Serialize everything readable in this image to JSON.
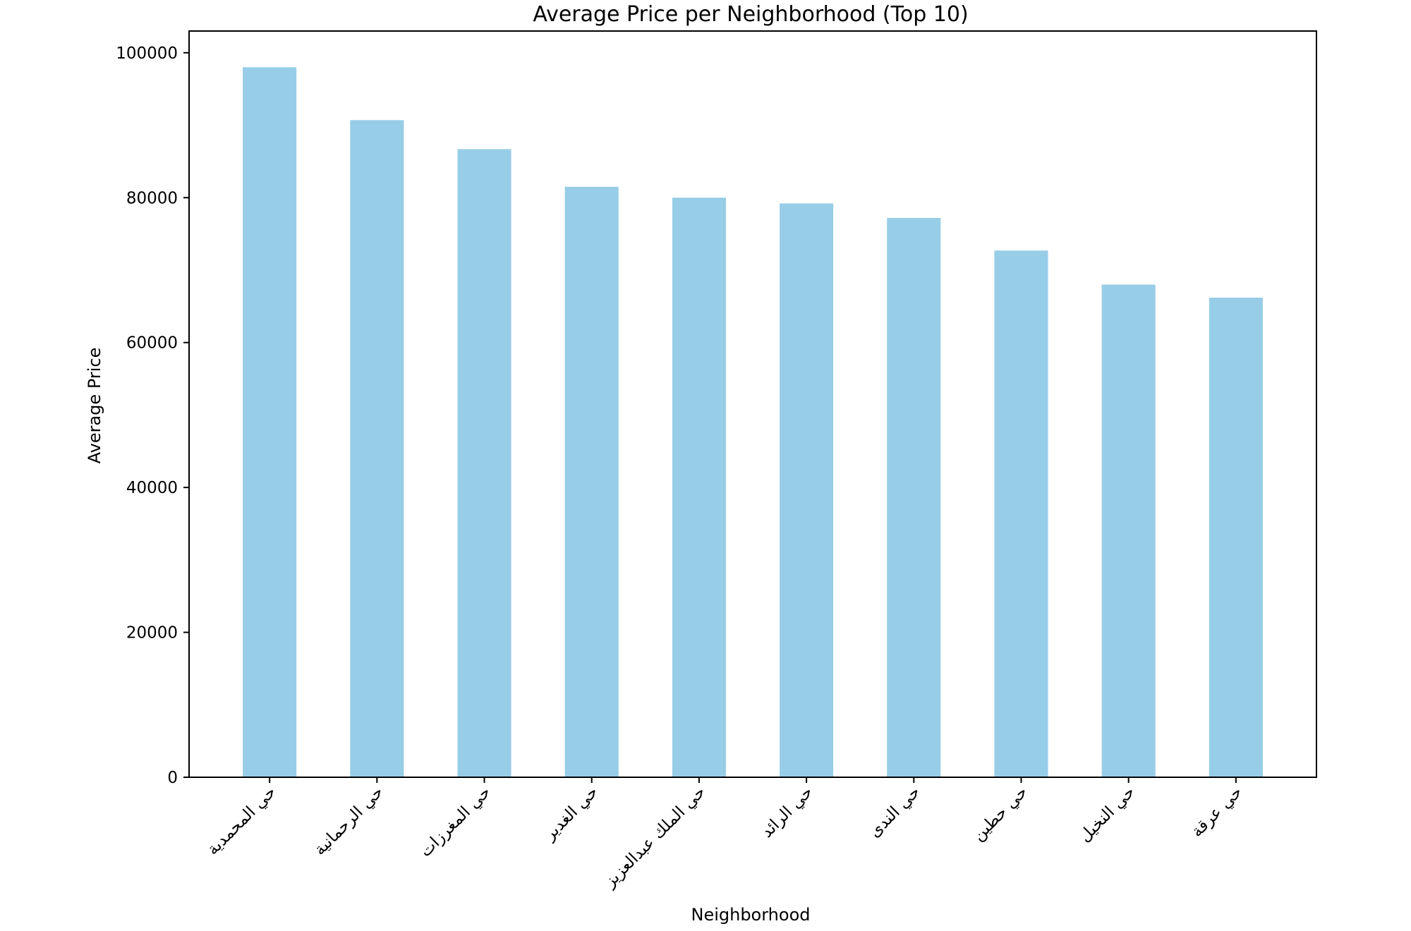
{
  "chart_data": {
    "type": "bar",
    "title": "Average Price per Neighborhood (Top 10)",
    "xlabel": "Neighborhood",
    "ylabel": "Average Price",
    "categories": [
      "حي المحمدية",
      "حي الرحمانية",
      "حي المغرزات",
      "حي الغدير",
      "حي الملك عبدالعزيز",
      "حي الرائد",
      "حي الندى",
      "حي حطين",
      "حي النخيل",
      "حي عرقة"
    ],
    "values": [
      98000,
      90700,
      86700,
      81500,
      80000,
      79200,
      77200,
      72700,
      68000,
      66200
    ],
    "yticks": [
      0,
      20000,
      40000,
      60000,
      80000,
      100000
    ],
    "ylim": [
      0,
      103000
    ],
    "grid": false,
    "legend": "none",
    "colors": {
      "bar": "#98cde8",
      "axes": "#000000",
      "background": "#ffffff"
    }
  }
}
